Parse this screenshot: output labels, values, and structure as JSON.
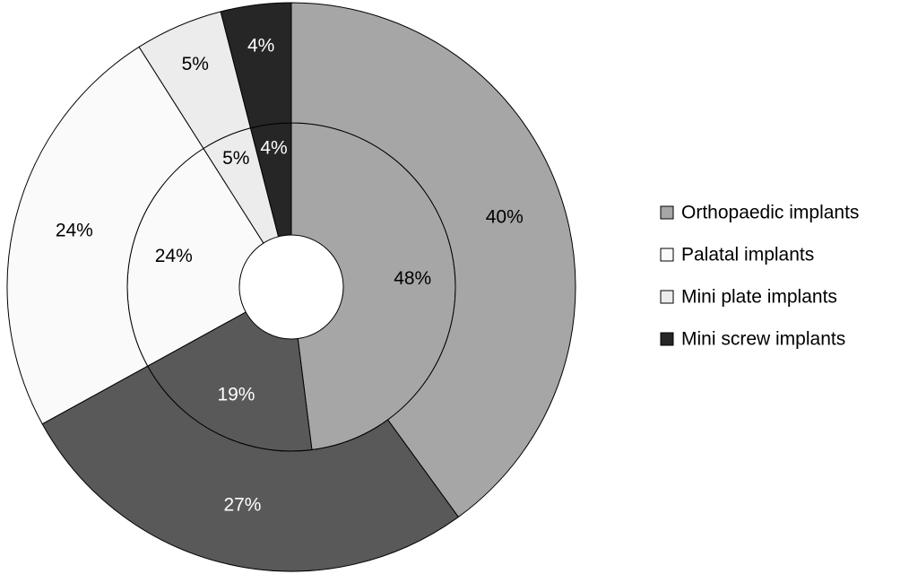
{
  "chart_data": {
    "type": "donut",
    "categories": [
      "Orthopaedic implants",
      null,
      "Palatal implants",
      "Mini plate implants",
      "Mini screw implants"
    ],
    "colors": [
      "#a6a6a6",
      "#595959",
      "#fafafa",
      "#ececec",
      "#262626"
    ],
    "series": [
      {
        "values": [
          48,
          19,
          24,
          5,
          4
        ],
        "value_labels": [
          "48%",
          "19%",
          "24%",
          "5%",
          "4%"
        ]
      },
      {
        "values": [
          40,
          27,
          24,
          5,
          4
        ],
        "value_labels": [
          "40%",
          "27%",
          "24%",
          "5%",
          "4%"
        ]
      }
    ],
    "legend": "right"
  }
}
